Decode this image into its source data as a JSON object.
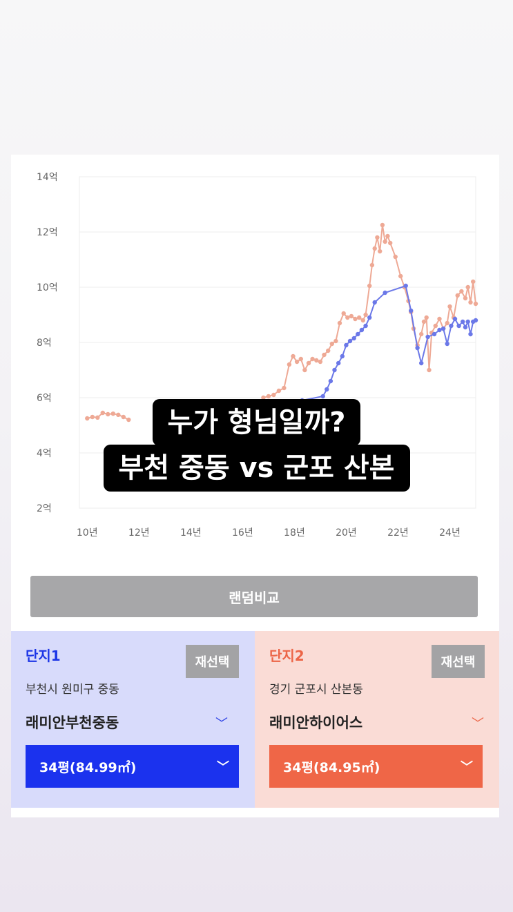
{
  "overlay": {
    "line1": "누가 형님일까?",
    "line2": "부천 중동 vs 군포 산본"
  },
  "random_compare": {
    "label": "랜덤비교"
  },
  "complex1": {
    "title": "단지1",
    "reselect": "재선택",
    "location": "부천시 원미구 중동",
    "apartment": "래미안부천중동",
    "size": "34평(84.99㎡)",
    "color": "#1c35e6",
    "line_color": "#6b78e8"
  },
  "complex2": {
    "title": "단지2",
    "reselect": "재선택",
    "location": "경기 군포시 산본동",
    "apartment": "래미안하이어스",
    "size": "34평(84.95㎡)",
    "color": "#ec6547",
    "line_color": "#eea995"
  },
  "chart_data": {
    "type": "line",
    "title": "",
    "xlabel": "",
    "ylabel": "",
    "y_ticks": [
      "2억",
      "4억",
      "6억",
      "8억",
      "10억",
      "12억",
      "14억"
    ],
    "x_ticks": [
      "10년",
      "12년",
      "14년",
      "16년",
      "18년",
      "20년",
      "22년",
      "24년"
    ],
    "ylim": [
      2,
      14
    ],
    "xlim": [
      2009.7,
      2025.0
    ],
    "grid": true,
    "series": [
      {
        "name": "",
        "color": "#eea995",
        "points": [
          [
            2010.0,
            5.25
          ],
          [
            2010.2,
            5.3
          ],
          [
            2010.4,
            5.28
          ],
          [
            2010.6,
            5.45
          ],
          [
            2010.8,
            5.4
          ],
          [
            2011.0,
            5.42
          ],
          [
            2011.2,
            5.38
          ],
          [
            2011.4,
            5.3
          ],
          [
            2011.6,
            5.2
          ],
          [
            2016.8,
            6.0
          ],
          [
            2017.0,
            6.05
          ],
          [
            2017.2,
            6.1
          ],
          [
            2017.4,
            6.25
          ],
          [
            2017.6,
            6.35
          ],
          [
            2017.8,
            7.2
          ],
          [
            2017.95,
            7.5
          ],
          [
            2018.1,
            7.3
          ],
          [
            2018.25,
            7.4
          ],
          [
            2018.4,
            7.0
          ],
          [
            2018.55,
            7.25
          ],
          [
            2018.7,
            7.4
          ],
          [
            2018.85,
            7.35
          ],
          [
            2019.0,
            7.3
          ],
          [
            2019.15,
            7.55
          ],
          [
            2019.3,
            7.7
          ],
          [
            2019.45,
            7.95
          ],
          [
            2019.6,
            8.05
          ],
          [
            2019.75,
            8.7
          ],
          [
            2019.9,
            9.05
          ],
          [
            2020.05,
            8.9
          ],
          [
            2020.2,
            8.95
          ],
          [
            2020.35,
            8.85
          ],
          [
            2020.5,
            8.9
          ],
          [
            2020.65,
            8.8
          ],
          [
            2020.75,
            9.0
          ],
          [
            2020.9,
            10.05
          ],
          [
            2021.0,
            10.8
          ],
          [
            2021.1,
            11.4
          ],
          [
            2021.2,
            11.8
          ],
          [
            2021.3,
            11.3
          ],
          [
            2021.4,
            12.25
          ],
          [
            2021.5,
            11.65
          ],
          [
            2021.6,
            11.85
          ],
          [
            2021.7,
            11.6
          ],
          [
            2021.9,
            11.1
          ],
          [
            2022.1,
            10.4
          ],
          [
            2022.25,
            10.0
          ],
          [
            2022.4,
            9.5
          ],
          [
            2022.5,
            9.1
          ],
          [
            2022.6,
            8.5
          ],
          [
            2022.75,
            7.9
          ],
          [
            2022.9,
            8.3
          ],
          [
            2023.0,
            8.75
          ],
          [
            2023.1,
            8.9
          ],
          [
            2023.2,
            7.0
          ],
          [
            2023.3,
            8.35
          ],
          [
            2023.45,
            8.6
          ],
          [
            2023.6,
            8.85
          ],
          [
            2023.75,
            8.5
          ],
          [
            2023.9,
            8.7
          ],
          [
            2024.0,
            9.3
          ],
          [
            2024.15,
            8.9
          ],
          [
            2024.3,
            9.7
          ],
          [
            2024.45,
            9.85
          ],
          [
            2024.6,
            9.6
          ],
          [
            2024.7,
            10.0
          ],
          [
            2024.8,
            9.45
          ],
          [
            2024.9,
            10.2
          ],
          [
            2025.0,
            9.4
          ]
        ]
      },
      {
        "name": "",
        "color": "#6b78e8",
        "points": [
          [
            2017.5,
            5.85
          ],
          [
            2018.3,
            5.9
          ],
          [
            2019.1,
            6.05
          ],
          [
            2019.25,
            6.3
          ],
          [
            2019.4,
            6.6
          ],
          [
            2019.55,
            7.0
          ],
          [
            2019.7,
            7.25
          ],
          [
            2019.85,
            7.5
          ],
          [
            2020.0,
            7.9
          ],
          [
            2020.15,
            8.05
          ],
          [
            2020.3,
            8.15
          ],
          [
            2020.45,
            8.3
          ],
          [
            2020.6,
            8.45
          ],
          [
            2020.75,
            8.6
          ],
          [
            2020.9,
            8.9
          ],
          [
            2021.1,
            9.45
          ],
          [
            2021.5,
            9.8
          ],
          [
            2022.3,
            10.05
          ],
          [
            2022.5,
            9.15
          ],
          [
            2022.75,
            7.8
          ],
          [
            2022.9,
            7.25
          ],
          [
            2023.15,
            8.2
          ],
          [
            2023.4,
            8.3
          ],
          [
            2023.6,
            8.45
          ],
          [
            2023.75,
            8.5
          ],
          [
            2023.9,
            7.95
          ],
          [
            2024.05,
            8.6
          ],
          [
            2024.2,
            8.85
          ],
          [
            2024.35,
            8.6
          ],
          [
            2024.5,
            8.75
          ],
          [
            2024.6,
            8.55
          ],
          [
            2024.7,
            8.75
          ],
          [
            2024.8,
            8.3
          ],
          [
            2024.9,
            8.75
          ],
          [
            2025.0,
            8.8
          ]
        ]
      }
    ]
  }
}
